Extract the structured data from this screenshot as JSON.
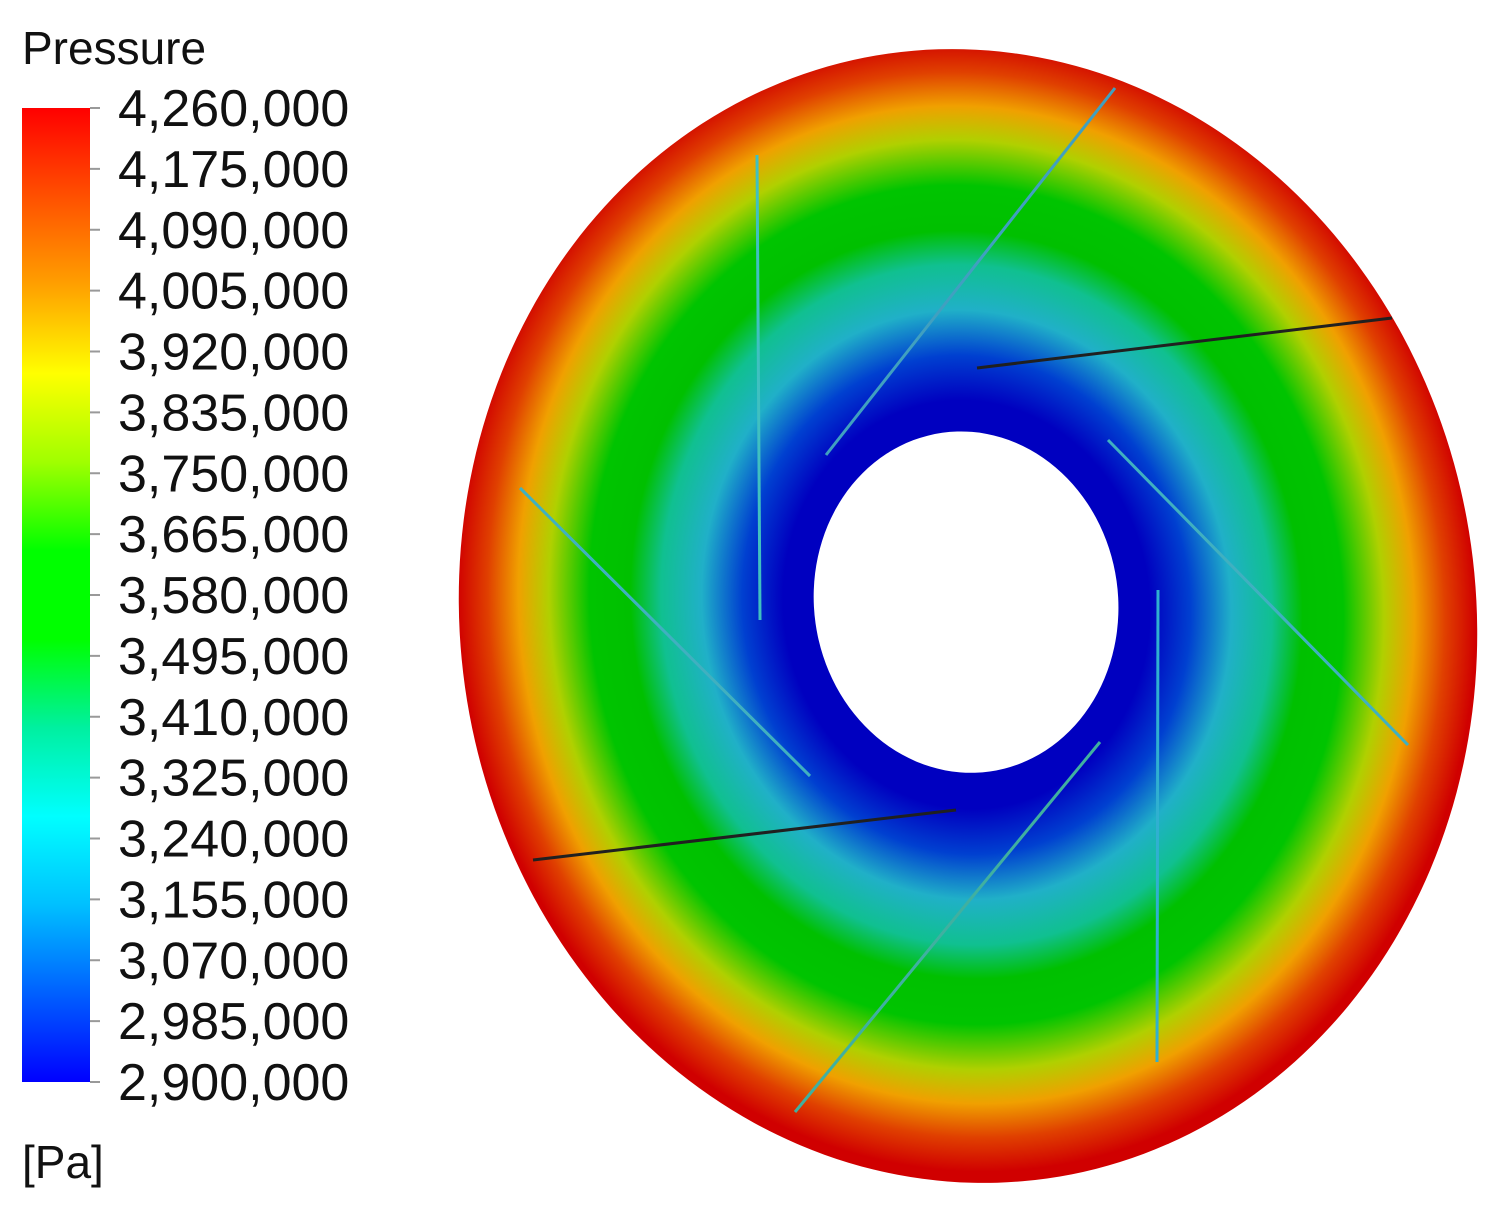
{
  "chart_data": {
    "type": "contour",
    "title": "Pressure",
    "unit": "[Pa]",
    "clim": [
      2900000,
      4260000
    ],
    "cticks": [
      {
        "value": 4260000,
        "label": "4,260,000"
      },
      {
        "value": 4175000,
        "label": "4,175,000"
      },
      {
        "value": 4090000,
        "label": "4,090,000"
      },
      {
        "value": 4005000,
        "label": "4,005,000"
      },
      {
        "value": 3920000,
        "label": "3,920,000"
      },
      {
        "value": 3835000,
        "label": "3,835,000"
      },
      {
        "value": 3750000,
        "label": "3,750,000"
      },
      {
        "value": 3665000,
        "label": "3,665,000"
      },
      {
        "value": 3580000,
        "label": "3,580,000"
      },
      {
        "value": 3495000,
        "label": "3,495,000"
      },
      {
        "value": 3410000,
        "label": "3,410,000"
      },
      {
        "value": 3325000,
        "label": "3,325,000"
      },
      {
        "value": 3240000,
        "label": "3,240,000"
      },
      {
        "value": 3155000,
        "label": "3,155,000"
      },
      {
        "value": 3070000,
        "label": "3,070,000"
      },
      {
        "value": 2985000,
        "label": "2,985,000"
      },
      {
        "value": 2900000,
        "label": "2,900,000"
      }
    ],
    "colormap": [
      "#0000ff",
      "#0060ff",
      "#00c0ff",
      "#00ffff",
      "#00f0a0",
      "#00ff00",
      "#00ff00",
      "#a0ff00",
      "#ffff00",
      "#ffa000",
      "#ff5000",
      "#ff0000"
    ]
  }
}
